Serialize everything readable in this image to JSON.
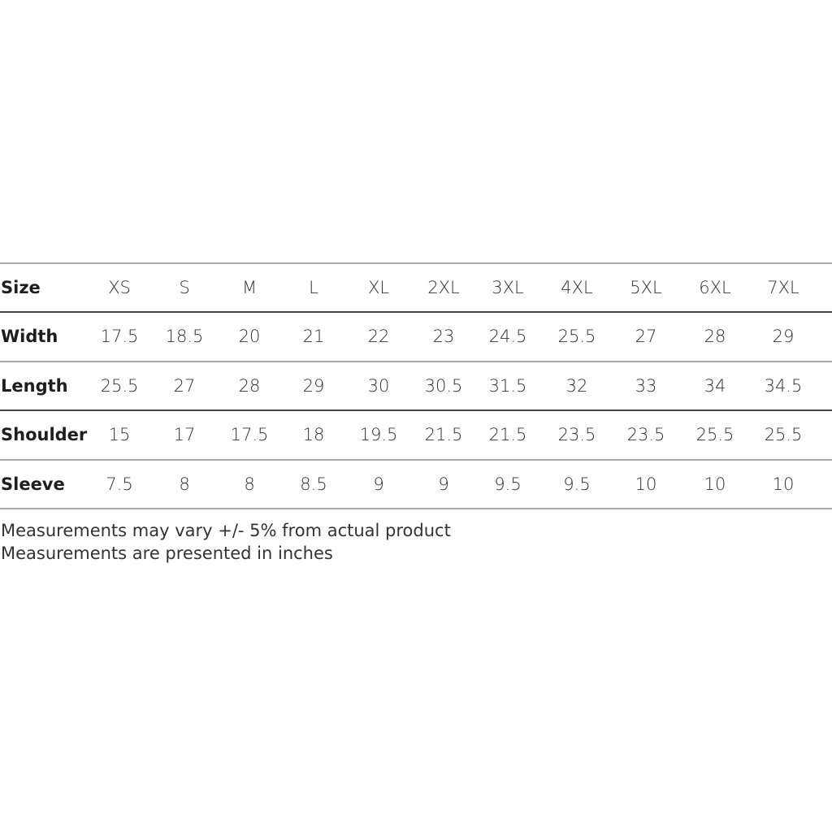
{
  "size_chart": {
    "header": {
      "label": "Size",
      "sizes": [
        "XS",
        "S",
        "M",
        "L",
        "XL",
        "2XL",
        "3XL",
        "4XL",
        "5XL",
        "6XL",
        "7XL"
      ]
    },
    "rows": [
      {
        "label": "Width",
        "values": [
          "17.5",
          "18.5",
          "20",
          "21",
          "22",
          "23",
          "24.5",
          "25.5",
          "27",
          "28",
          "29"
        ]
      },
      {
        "label": "Length",
        "values": [
          "25.5",
          "27",
          "28",
          "29",
          "30",
          "30.5",
          "31.5",
          "32",
          "33",
          "34",
          "34.5"
        ]
      },
      {
        "label": "Shoulder",
        "values": [
          "15",
          "17",
          "17.5",
          "18",
          "19.5",
          "21.5",
          "21.5",
          "23.5",
          "23.5",
          "25.5",
          "25.5"
        ]
      },
      {
        "label": "Sleeve",
        "values": [
          "7.5",
          "8",
          "8",
          "8.5",
          "9",
          "9",
          "9.5",
          "9.5",
          "10",
          "10",
          "10"
        ]
      }
    ]
  },
  "notes": [
    "Measurements may vary +/- 5% from actual product",
    "Measurements are presented in inches"
  ],
  "colors": {
    "rule_light": "#aaaaaa",
    "rule_dark": "#444444",
    "text": "#333333"
  }
}
